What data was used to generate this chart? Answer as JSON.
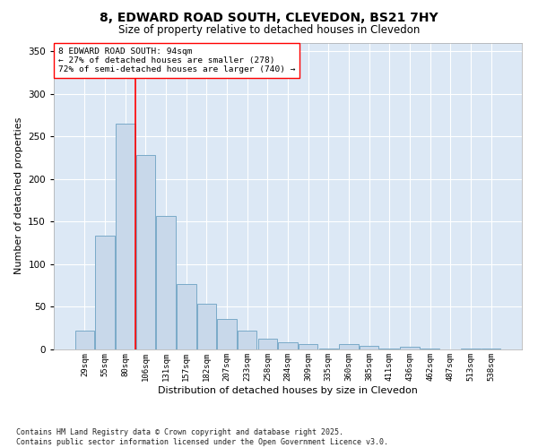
{
  "title1": "8, EDWARD ROAD SOUTH, CLEVEDON, BS21 7HY",
  "title2": "Size of property relative to detached houses in Clevedon",
  "xlabel": "Distribution of detached houses by size in Clevedon",
  "ylabel": "Number of detached properties",
  "categories": [
    "29sqm",
    "55sqm",
    "80sqm",
    "106sqm",
    "131sqm",
    "157sqm",
    "182sqm",
    "207sqm",
    "233sqm",
    "258sqm",
    "284sqm",
    "309sqm",
    "335sqm",
    "360sqm",
    "385sqm",
    "411sqm",
    "436sqm",
    "462sqm",
    "487sqm",
    "513sqm",
    "538sqm"
  ],
  "values": [
    22,
    134,
    265,
    228,
    157,
    77,
    54,
    36,
    22,
    13,
    8,
    6,
    1,
    6,
    4,
    1,
    3,
    1,
    0,
    1,
    1
  ],
  "bar_color": "#c8d8ea",
  "bar_edge_color": "#7aaac8",
  "vline_x_index": 2,
  "vline_color": "red",
  "annotation_text": "8 EDWARD ROAD SOUTH: 94sqm\n← 27% of detached houses are smaller (278)\n72% of semi-detached houses are larger (740) →",
  "annotation_box_color": "white",
  "annotation_box_edge": "red",
  "ylim": [
    0,
    360
  ],
  "yticks": [
    0,
    50,
    100,
    150,
    200,
    250,
    300,
    350
  ],
  "footer": "Contains HM Land Registry data © Crown copyright and database right 2025.\nContains public sector information licensed under the Open Government Licence v3.0.",
  "plot_bg_color": "#dce8f5",
  "fig_bg_color": "#ffffff",
  "grid_color": "#ffffff"
}
